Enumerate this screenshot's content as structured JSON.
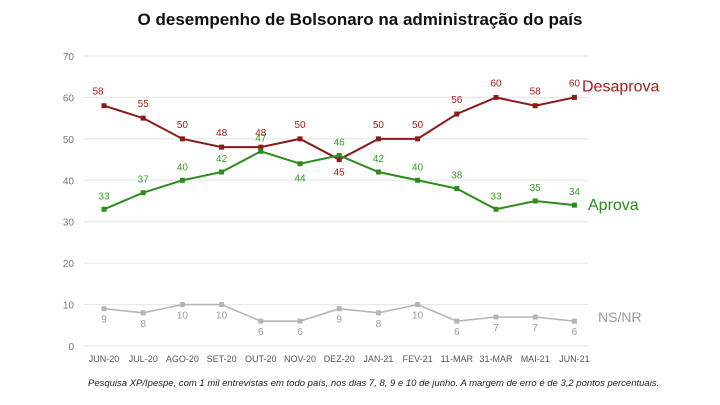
{
  "chart_data": {
    "type": "line",
    "title": "O desempenho de Bolsonaro na administração do país",
    "categories": [
      "JUN-20",
      "JUL-20",
      "AGO-20",
      "SET-20",
      "OUT-20",
      "NOV-20",
      "DEZ-20",
      "JAN-21",
      "FEV-21",
      "11-MAR",
      "31-MAR",
      "MAI-21",
      "JUN-21"
    ],
    "ylim": [
      0,
      70
    ],
    "yticks": [
      0,
      10,
      20,
      30,
      40,
      50,
      60,
      70
    ],
    "grid": true,
    "series": [
      {
        "name": "Desaprova",
        "color": "#8b1a1a",
        "labelColor": "#a42020",
        "nameColor": "#a42020",
        "values": [
          58,
          55,
          50,
          48,
          48,
          50,
          45,
          50,
          50,
          56,
          60,
          58,
          60
        ]
      },
      {
        "name": "Aprova",
        "color": "#2e8b1e",
        "labelColor": "#3a9a2a",
        "nameColor": "#2e8b1e",
        "values": [
          33,
          37,
          40,
          42,
          47,
          44,
          46,
          42,
          40,
          38,
          33,
          35,
          34
        ]
      },
      {
        "name": "NS/NR",
        "color": "#b5b5b5",
        "labelColor": "#9a9a9a",
        "nameColor": "#9a9a9a",
        "values": [
          9,
          8,
          10,
          10,
          6,
          6,
          9,
          8,
          10,
          6,
          7,
          7,
          6
        ]
      }
    ],
    "footnote": "Pesquisa XP/Ipespe, com 1 mil entrevistas em todo país, nos dias 7, 8, 9 e 10 de junho. A margem de erro é de 3,2 pontos percentuais."
  }
}
